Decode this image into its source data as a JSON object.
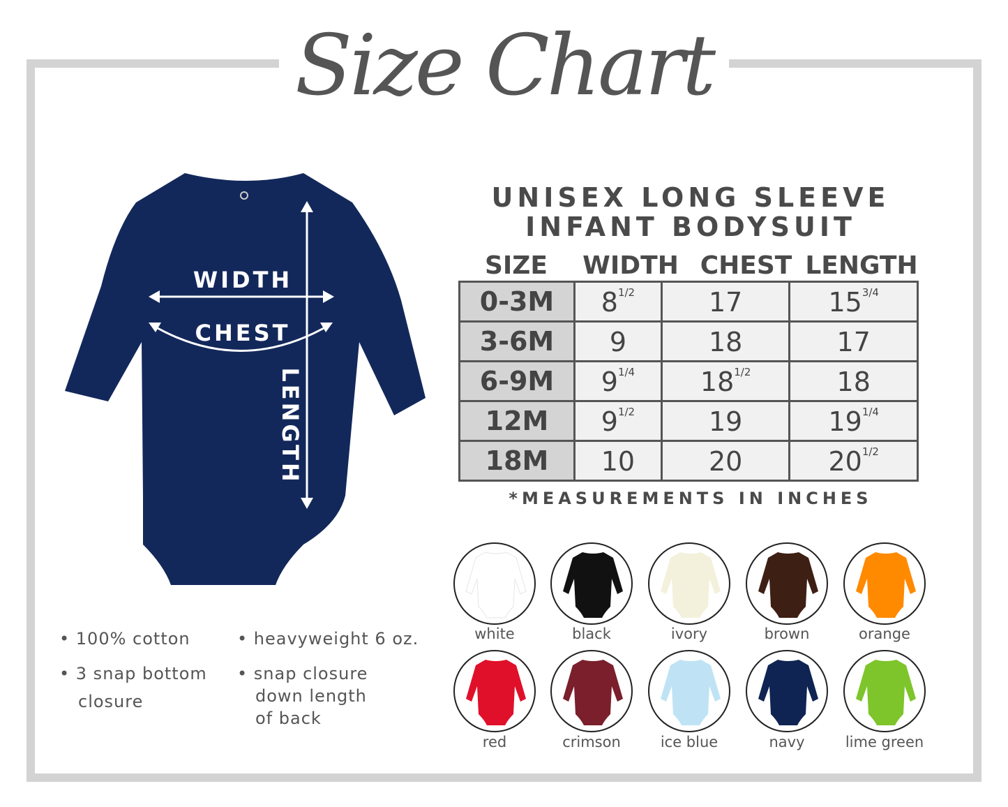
{
  "title": "Size Chart",
  "product_title": [
    "UNISEX LONG SLEEVE",
    "INFANT BODYSUIT"
  ],
  "diagram_labels": {
    "width": "WIDTH",
    "chest": "CHEST",
    "length": "LENGTH"
  },
  "table": {
    "headers": [
      "SIZE",
      "WIDTH",
      "CHEST",
      "LENGTH"
    ],
    "rows": [
      {
        "size": "0-3M",
        "width": "8",
        "width_frac": "1/2",
        "chest": "17",
        "chest_frac": "",
        "length": "15",
        "length_frac": "3/4"
      },
      {
        "size": "3-6M",
        "width": "9",
        "width_frac": "",
        "chest": "18",
        "chest_frac": "",
        "length": "17",
        "length_frac": ""
      },
      {
        "size": "6-9M",
        "width": "9",
        "width_frac": "1/4",
        "chest": "18",
        "chest_frac": "1/2",
        "length": "18",
        "length_frac": ""
      },
      {
        "size": "12M",
        "width": "9",
        "width_frac": "1/2",
        "chest": "19",
        "chest_frac": "",
        "length": "19",
        "length_frac": "1/4"
      },
      {
        "size": "18M",
        "width": "10",
        "width_frac": "",
        "chest": "20",
        "chest_frac": "",
        "length": "20",
        "length_frac": "1/2"
      }
    ]
  },
  "note": "*MEASUREMENTS IN INCHES",
  "features": [
    "• 100% cotton",
    "• heavyweight 6 oz.",
    "• 3 snap bottom",
    "closure",
    "• snap closure",
    "down length",
    "of back"
  ],
  "colors": [
    {
      "name": "white",
      "hex": "#ffffff"
    },
    {
      "name": "black",
      "hex": "#111111"
    },
    {
      "name": "ivory",
      "hex": "#f3f1dc"
    },
    {
      "name": "brown",
      "hex": "#3e1f14"
    },
    {
      "name": "orange",
      "hex": "#ff8a00"
    },
    {
      "name": "red",
      "hex": "#e0102a"
    },
    {
      "name": "crimson",
      "hex": "#7a1f2b"
    },
    {
      "name": "ice blue",
      "hex": "#bfe3f5"
    },
    {
      "name": "navy",
      "hex": "#0f2452"
    },
    {
      "name": "lime green",
      "hex": "#7dc52b"
    }
  ],
  "accent": {
    "navy_bodysuit": "#13285a",
    "frame": "#d3d3d3"
  }
}
